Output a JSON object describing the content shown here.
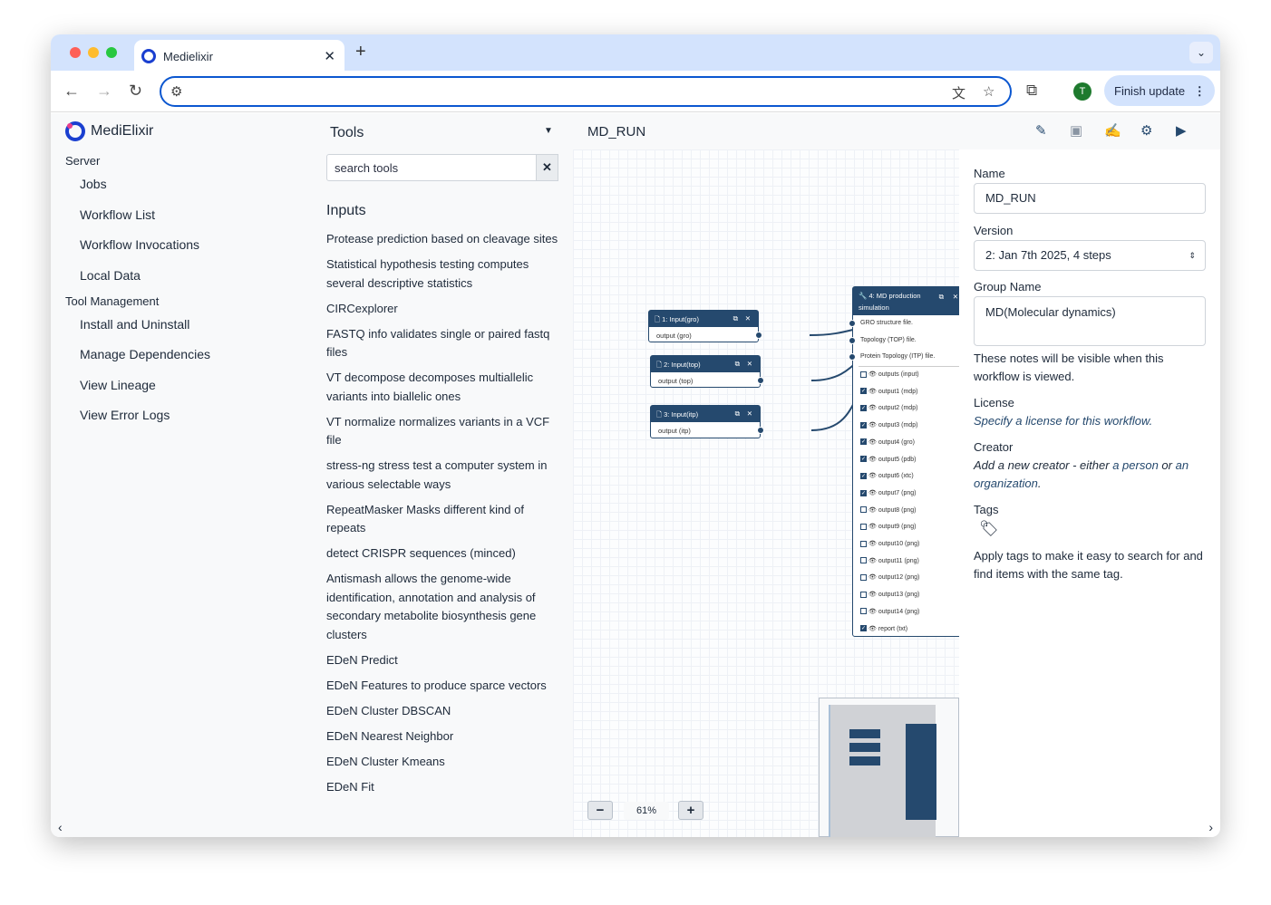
{
  "browser": {
    "tab_title": "Medielixir",
    "address": "",
    "finish_update": "Finish update",
    "avatar_letter": "T"
  },
  "nav": {
    "brand": "MediElixir",
    "sections": [
      {
        "title": "Server",
        "items": [
          "Jobs",
          "Workflow List",
          "Workflow Invocations",
          "Local Data"
        ]
      },
      {
        "title": "Tool Management",
        "items": [
          "Install and Uninstall",
          "Manage Dependencies",
          "View Lineage",
          "View Error Logs"
        ]
      }
    ]
  },
  "tools": {
    "title": "Tools",
    "search_placeholder": "search tools",
    "section": "Inputs",
    "items": [
      "Protease prediction based on cleavage sites",
      "Statistical hypothesis testing computes several descriptive statistics",
      "CIRCexplorer",
      "FASTQ info validates single or paired fastq files",
      "VT decompose decomposes multiallelic variants into biallelic ones",
      "VT normalize normalizes variants in a VCF file",
      "stress-ng stress test a computer system in various selectable ways",
      "RepeatMasker Masks different kind of repeats",
      "detect CRISPR sequences (minced)",
      "Antismash allows the genome-wide identification, annotation and analysis of secondary metabolite biosynthesis gene clusters",
      "EDeN Predict",
      "EDeN Features to produce sparce vectors",
      "EDeN Cluster DBSCAN",
      "EDeN Nearest Neighbor",
      "EDeN Cluster Kmeans",
      "EDeN Fit"
    ]
  },
  "workflow": {
    "title": "MD_RUN",
    "zoom": "61%",
    "nodes": [
      {
        "title": "1: Input(gro)",
        "output": "output (gro)"
      },
      {
        "title": "2: Input(top)",
        "output": "output (top)"
      },
      {
        "title": "3: Input(itp)",
        "output": "output (itp)"
      }
    ],
    "tool_node": {
      "title": "4: MD production simulation",
      "inputs": [
        "GRO structure file.",
        "Topology (TOP) file.",
        "Protein Topology (ITP) file."
      ],
      "outputs": [
        {
          "label": "outputs (input)",
          "checked": false
        },
        {
          "label": "output1 (mdp)",
          "checked": true
        },
        {
          "label": "output2 (mdp)",
          "checked": true
        },
        {
          "label": "output3 (mdp)",
          "checked": true
        },
        {
          "label": "output4 (gro)",
          "checked": true
        },
        {
          "label": "output5 (pdb)",
          "checked": true
        },
        {
          "label": "output6 (xtc)",
          "checked": true
        },
        {
          "label": "output7 (png)",
          "checked": true
        },
        {
          "label": "output8 (png)",
          "checked": false
        },
        {
          "label": "output9 (png)",
          "checked": false
        },
        {
          "label": "output10 (png)",
          "checked": false
        },
        {
          "label": "output11 (png)",
          "checked": false
        },
        {
          "label": "output12 (png)",
          "checked": false
        },
        {
          "label": "output13 (png)",
          "checked": false
        },
        {
          "label": "output14 (png)",
          "checked": false
        },
        {
          "label": "report (txt)",
          "checked": true
        }
      ]
    }
  },
  "attributes": {
    "name_label": "Name",
    "name_value": "MD_RUN",
    "version_label": "Version",
    "version_value": "2: Jan 7th 2025, 4 steps",
    "group_label": "Group Name",
    "group_value": "MD(Molecular dynamics)",
    "annotation_help": "These notes will be visible when this workflow is viewed.",
    "license_label": "License",
    "license_link": "Specify a license for this workflow.",
    "creator_label": "Creator",
    "creator_pre": "Add a new creator - either ",
    "creator_person": "a person",
    "creator_mid": " or ",
    "creator_org": "an organization",
    "creator_end": ".",
    "tags_label": "Tags",
    "tags_help": "Apply tags to make it easy to search for and find items with the same tag."
  },
  "colors": {
    "accent": "#25496e",
    "tabbar": "#d3e3fd",
    "address_border": "#0b57d0"
  }
}
